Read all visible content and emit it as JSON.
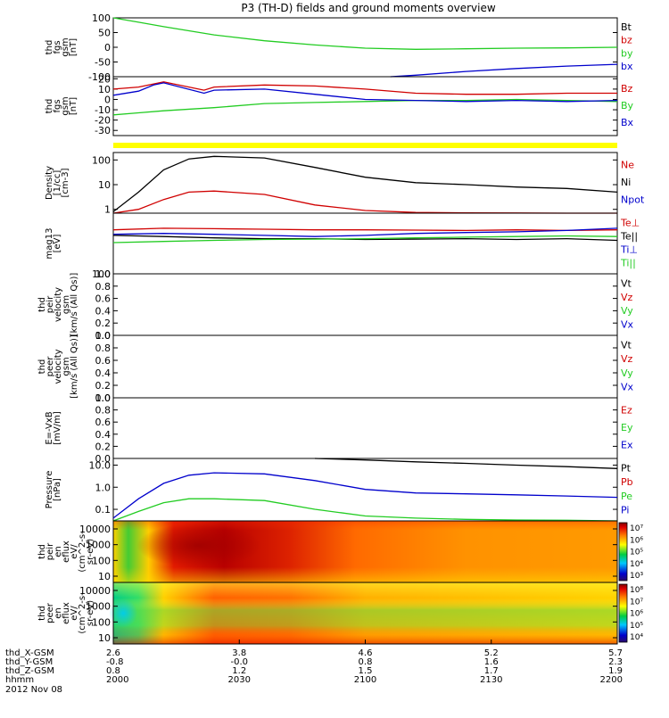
{
  "title": "P3 (TH-D) fields and ground moments overview",
  "date_label": "2012 Nov 08",
  "colors": {
    "black": "#000000",
    "red": "#d00000",
    "green": "#22cc22",
    "blue": "#0000cc",
    "yellow": "#ffff00"
  },
  "x_axis": {
    "tick_labels": [
      "2000",
      "2030",
      "2100",
      "2130",
      "2200"
    ],
    "rows": [
      {
        "label": "thd_X-GSM",
        "values": [
          "2.6",
          "3.8",
          "4.6",
          "5.2",
          "5.7"
        ]
      },
      {
        "label": "thd_Y-GSM",
        "values": [
          "-0.8",
          "-0.0",
          "0.8",
          "1.6",
          "2.3"
        ]
      },
      {
        "label": "thd_Z-GSM",
        "values": [
          "0.8",
          "1.2",
          "1.5",
          "1.7",
          "1.9"
        ]
      },
      {
        "label": "hhmm",
        "values": [
          "2000",
          "2030",
          "2100",
          "2130",
          "2200"
        ]
      }
    ]
  },
  "chart_data": [
    {
      "type": "line",
      "id": "fgs_gse",
      "ylabel": [
        "thd",
        "fgs",
        "gsm",
        "[nT]"
      ],
      "ylim": [
        -100,
        100
      ],
      "yticks": [
        "100",
        "50",
        "0",
        "-50",
        "-100"
      ],
      "legend": [
        "Bt",
        "bz",
        "by",
        "bx"
      ],
      "legend_colors": [
        "black",
        "red",
        "green",
        "blue"
      ],
      "series": [
        {
          "name": "by",
          "color": "green",
          "x": [
            0,
            0.05,
            0.1,
            0.2,
            0.3,
            0.4,
            0.5,
            0.6,
            0.7,
            0.8,
            0.9,
            1.0
          ],
          "values": [
            100,
            85,
            70,
            42,
            22,
            8,
            -3,
            -7,
            -5,
            -3,
            -2,
            0
          ]
        },
        {
          "name": "bx",
          "color": "blue",
          "x": [
            0.55,
            0.6,
            0.7,
            0.8,
            0.9,
            1.0
          ],
          "values": [
            -100,
            -95,
            -82,
            -72,
            -64,
            -58
          ]
        }
      ]
    },
    {
      "type": "line",
      "id": "fgs_gsm",
      "ylabel": [
        "thd",
        "fgs",
        "gsm",
        "[nT]"
      ],
      "ylim": [
        -35,
        22
      ],
      "yticks": [
        "20",
        "10",
        "0",
        "-10",
        "-20",
        "-30"
      ],
      "legend": [
        "Bz",
        "By",
        "Bx"
      ],
      "legend_colors": [
        "red",
        "green",
        "blue"
      ],
      "series": [
        {
          "name": "Bz",
          "color": "red",
          "x": [
            0,
            0.05,
            0.08,
            0.1,
            0.18,
            0.2,
            0.3,
            0.4,
            0.5,
            0.6,
            0.7,
            0.8,
            0.9,
            1.0
          ],
          "values": [
            10,
            12,
            15,
            17,
            9,
            12,
            14,
            13,
            10,
            6,
            5,
            5,
            6,
            6
          ]
        },
        {
          "name": "By",
          "color": "green",
          "x": [
            0,
            0.05,
            0.1,
            0.2,
            0.3,
            0.4,
            0.5,
            0.6,
            0.7,
            0.8,
            0.9,
            1.0
          ],
          "values": [
            -15,
            -13,
            -11,
            -8,
            -4,
            -3,
            -2,
            -1,
            -1,
            0,
            -1,
            -2
          ]
        },
        {
          "name": "Bx",
          "color": "blue",
          "x": [
            0,
            0.05,
            0.08,
            0.1,
            0.18,
            0.2,
            0.3,
            0.4,
            0.5,
            0.6,
            0.7,
            0.8,
            0.9,
            1.0
          ],
          "values": [
            4,
            8,
            14,
            16,
            6,
            9,
            10,
            5,
            0,
            -1,
            -2,
            -1,
            -2,
            -1
          ]
        }
      ]
    },
    {
      "type": "line",
      "id": "density",
      "ylabel": [
        "Density",
        "[1/cc]",
        "[cm-3]"
      ],
      "ylog": true,
      "ylim": [
        0.7,
        200
      ],
      "yticks": [
        "100",
        "10",
        "1"
      ],
      "legend": [
        "Ne",
        "Ni",
        "Npot"
      ],
      "legend_colors": [
        "red",
        "black",
        "blue"
      ],
      "series": [
        {
          "name": "Ni",
          "color": "black",
          "x": [
            0,
            0.05,
            0.1,
            0.15,
            0.2,
            0.3,
            0.4,
            0.5,
            0.6,
            0.7,
            0.8,
            0.9,
            1.0
          ],
          "values": [
            0.8,
            5,
            40,
            110,
            140,
            120,
            50,
            20,
            12,
            10,
            8,
            7,
            5
          ]
        },
        {
          "name": "Ne",
          "color": "red",
          "x": [
            0,
            0.05,
            0.1,
            0.15,
            0.2,
            0.3,
            0.4,
            0.5,
            0.6,
            0.7,
            0.8,
            0.9,
            1.0
          ],
          "values": [
            0.7,
            1,
            2.5,
            5,
            5.5,
            4,
            1.5,
            0.9,
            0.75,
            0.72,
            0.71,
            0.7,
            0.7
          ]
        }
      ]
    },
    {
      "type": "line",
      "id": "temperature",
      "ylabel": [
        "mag13",
        "[eV]"
      ],
      "ylog": true,
      "ylim": [
        100,
        100000
      ],
      "yticks": [
        "100"
      ],
      "legend": [
        "Te⊥",
        "Te||",
        "Ti⊥",
        "Ti||"
      ],
      "legend_colors": [
        "red",
        "black",
        "blue",
        "green"
      ],
      "series": [
        {
          "name": "Te⊥",
          "color": "red",
          "x": [
            0,
            0.1,
            0.2,
            0.3,
            0.4,
            0.5,
            0.6,
            0.7,
            0.8,
            0.9,
            1.0
          ],
          "values": [
            15000,
            18000,
            17000,
            16000,
            15000,
            15000,
            14500,
            14000,
            15000,
            14000,
            15000
          ]
        },
        {
          "name": "Ti⊥",
          "color": "blue",
          "x": [
            0,
            0.1,
            0.2,
            0.3,
            0.4,
            0.5,
            0.6,
            0.7,
            0.8,
            0.9,
            1.0
          ],
          "values": [
            9000,
            10000,
            9000,
            8000,
            7000,
            8000,
            10000,
            11000,
            12000,
            14000,
            18000
          ]
        },
        {
          "name": "Te||",
          "color": "black",
          "x": [
            0,
            0.1,
            0.2,
            0.3,
            0.4,
            0.5,
            0.6,
            0.7,
            0.8,
            0.9,
            1.0
          ],
          "values": [
            8000,
            7000,
            6000,
            5500,
            5500,
            5000,
            5200,
            5500,
            5000,
            5500,
            4500
          ]
        },
        {
          "name": "Ti||",
          "color": "green",
          "x": [
            0,
            0.1,
            0.2,
            0.3,
            0.4,
            0.5,
            0.6,
            0.7,
            0.8,
            0.9,
            1.0
          ],
          "values": [
            3500,
            4000,
            4500,
            5000,
            5200,
            5500,
            6000,
            6500,
            7000,
            7500,
            7000
          ]
        }
      ]
    },
    {
      "type": "line",
      "id": "peir_velocity",
      "ylabel": [
        "thd",
        "peir",
        "velocity",
        "gsm",
        "[km/s (All Qs)]"
      ],
      "ylim": [
        0,
        1
      ],
      "yticks": [
        "1.0",
        "0.8",
        "0.6",
        "0.4",
        "0.2",
        "0.0"
      ],
      "legend": [
        "Vt",
        "Vz",
        "Vy",
        "Vx"
      ],
      "legend_colors": [
        "black",
        "red",
        "green",
        "blue"
      ],
      "series": []
    },
    {
      "type": "line",
      "id": "peer_velocity",
      "ylabel": [
        "thd",
        "peer",
        "velocity",
        "gsm",
        "[km/s (All Qs)]"
      ],
      "ylim": [
        0,
        1
      ],
      "yticks": [
        "1.0",
        "0.8",
        "0.6",
        "0.4",
        "0.2",
        "0.0"
      ],
      "legend": [
        "Vt",
        "Vz",
        "Vy",
        "Vx"
      ],
      "legend_colors": [
        "black",
        "red",
        "green",
        "blue"
      ],
      "series": []
    },
    {
      "type": "line",
      "id": "efield",
      "ylabel": [
        "E=-VxB",
        "[mV/m]"
      ],
      "ylim": [
        0,
        1
      ],
      "yticks": [
        "1.0",
        "0.8",
        "0.6",
        "0.4",
        "0.2",
        "0.0"
      ],
      "legend": [
        "Ez",
        "Ey",
        "Ex"
      ],
      "legend_colors": [
        "red",
        "green",
        "blue"
      ],
      "series": []
    },
    {
      "type": "line",
      "id": "pressure",
      "ylabel": [
        "Pressure",
        "[nPa]"
      ],
      "ylog": true,
      "ylim": [
        0.03,
        20
      ],
      "yticks": [
        "10.0",
        "1.0",
        "0.1"
      ],
      "legend": [
        "Pt",
        "Pb",
        "Pe",
        "Pi"
      ],
      "legend_colors": [
        "black",
        "red",
        "green",
        "blue"
      ],
      "series": [
        {
          "name": "Pt",
          "color": "black",
          "x": [
            0.4,
            0.5,
            0.6,
            0.7,
            0.8,
            0.9,
            1.0
          ],
          "values": [
            20,
            17,
            14,
            12,
            10,
            8.5,
            7
          ]
        },
        {
          "name": "Pi",
          "color": "blue",
          "x": [
            0,
            0.05,
            0.1,
            0.15,
            0.2,
            0.3,
            0.4,
            0.5,
            0.6,
            0.7,
            0.8,
            0.9,
            1.0
          ],
          "values": [
            0.04,
            0.3,
            1.5,
            3.5,
            4.5,
            4,
            2,
            0.8,
            0.55,
            0.5,
            0.45,
            0.4,
            0.35
          ]
        },
        {
          "name": "Pe",
          "color": "green",
          "x": [
            0,
            0.05,
            0.1,
            0.15,
            0.2,
            0.3,
            0.4,
            0.5,
            0.6,
            0.7,
            0.8,
            0.9,
            1.0
          ],
          "values": [
            0.03,
            0.08,
            0.2,
            0.3,
            0.3,
            0.25,
            0.1,
            0.05,
            0.04,
            0.035,
            0.033,
            0.032,
            0.03
          ]
        }
      ]
    },
    {
      "type": "heatmap",
      "id": "peir_en_eflux",
      "ylabel": [
        "thd",
        "peir",
        "en",
        "eflux",
        "eV/",
        "(cm^2-s-",
        "sr-eV)"
      ],
      "yticks": [
        "10000",
        "1000",
        "100",
        "10"
      ],
      "colorbar_ticks": [
        "10⁷",
        "10⁶",
        "10⁵",
        "10⁴",
        "10³"
      ]
    },
    {
      "type": "heatmap",
      "id": "peer_en_eflux",
      "ylabel": [
        "thd",
        "peer",
        "en",
        "eflux",
        "eV/",
        "(cm^2-s-",
        "sr-eV)"
      ],
      "yticks": [
        "10000",
        "1000",
        "100",
        "10"
      ],
      "colorbar_ticks": [
        "10⁸",
        "10⁷",
        "10⁶",
        "10⁵",
        "10⁴"
      ]
    }
  ]
}
